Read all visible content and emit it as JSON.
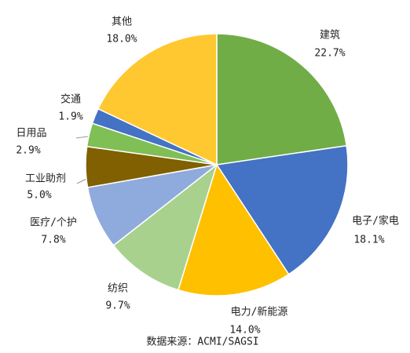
{
  "chart_data": {
    "type": "pie",
    "categories": [
      "建筑",
      "电子/家电",
      "电力/新能源",
      "纺织",
      "医疗/个护",
      "工业助剂",
      "日用品",
      "交通",
      "其他"
    ],
    "values": [
      22.7,
      18.1,
      14.0,
      9.7,
      7.8,
      5.0,
      2.9,
      1.9,
      18.0
    ],
    "value_labels": [
      "22.7%",
      "18.1%",
      "14.0%",
      "9.7%",
      "7.8%",
      "5.0%",
      "2.9%",
      "1.9%",
      "18.0%"
    ],
    "colors": [
      "#70ad47",
      "#4472c4",
      "#ffc000",
      "#a9d18e",
      "#8faadc",
      "#806000",
      "#7fbf56",
      "#4472c4",
      "#ffc830"
    ],
    "source": "数据来源：ACMI/SAGSI"
  }
}
